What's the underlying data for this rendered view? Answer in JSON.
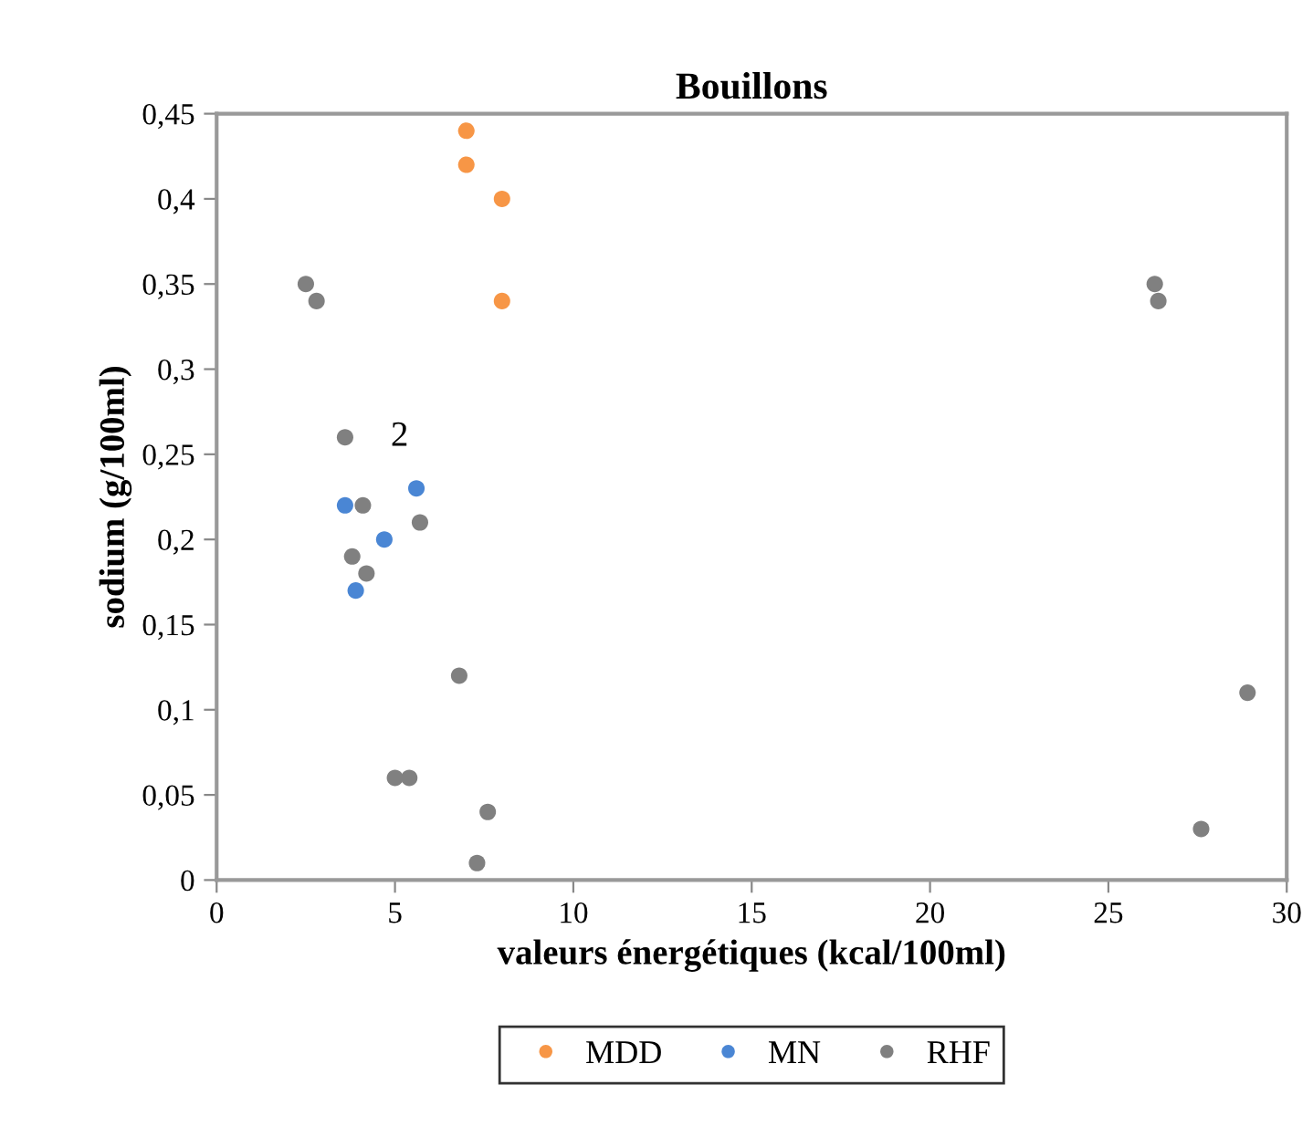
{
  "chart_data": {
    "type": "scatter",
    "title": "Bouillons",
    "xlabel": "valeurs énergétiques (kcal/100ml)",
    "ylabel": "sodium (g/100ml)",
    "xlim": [
      0,
      30
    ],
    "xticks": [
      0,
      5,
      10,
      15,
      20,
      25,
      30
    ],
    "ylim": [
      0,
      0.45
    ],
    "yticks": [
      0,
      {
        "value": 0.05,
        "label": "0,05"
      },
      {
        "value": 0.1,
        "label": "0,1"
      },
      {
        "value": 0.15,
        "label": "0,15"
      },
      {
        "value": 0.2,
        "label": "0,2"
      },
      {
        "value": 0.25,
        "label": "0,25"
      },
      {
        "value": 0.3,
        "label": "0,3"
      },
      {
        "value": 0.35,
        "label": "0,35"
      },
      {
        "value": 0.4,
        "label": "0,4"
      },
      {
        "value": 0.45,
        "label": "0,45"
      }
    ],
    "grid": false,
    "legend": "bottom",
    "marker": "circle",
    "annotations": [
      {
        "text": "2",
        "x": 3.6,
        "y": 0.26
      }
    ],
    "series": [
      {
        "name": "MDD",
        "color": "#f79646",
        "x": [
          7.0,
          7.0,
          8.0,
          8.0
        ],
        "values": [
          0.44,
          0.42,
          0.4,
          0.34
        ]
      },
      {
        "name": "MN",
        "color": "#4a86d4",
        "x": [
          3.6,
          3.9,
          4.7,
          5.6
        ],
        "values": [
          0.22,
          0.17,
          0.2,
          0.23
        ]
      },
      {
        "name": "RHF",
        "color": "#808080",
        "x": [
          2.5,
          2.8,
          3.6,
          4.1,
          3.8,
          4.2,
          5.7,
          6.8,
          5.0,
          5.4,
          7.6,
          7.3,
          26.3,
          26.4,
          28.9,
          27.6
        ],
        "values": [
          0.35,
          0.34,
          0.26,
          0.22,
          0.19,
          0.18,
          0.21,
          0.12,
          0.06,
          0.06,
          0.04,
          0.01,
          0.35,
          0.34,
          0.11,
          0.03
        ]
      }
    ]
  }
}
